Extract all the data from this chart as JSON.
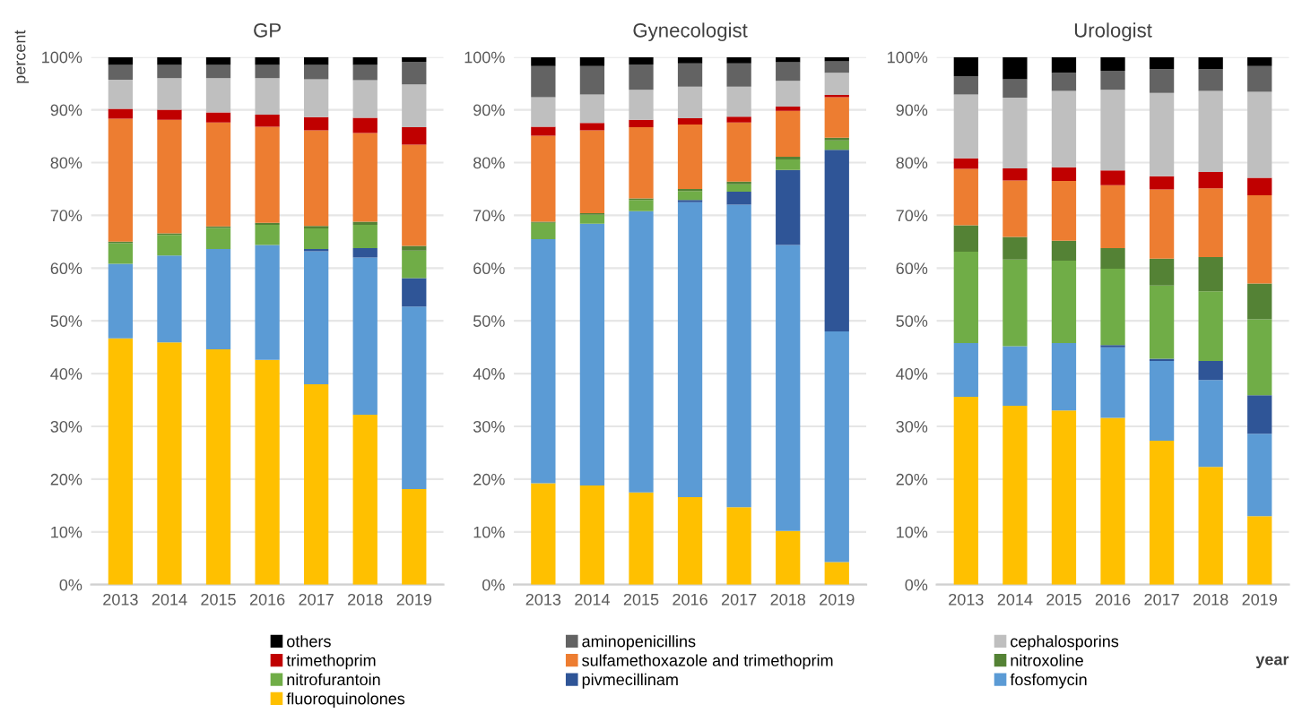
{
  "chart_data": [
    {
      "type": "bar",
      "stacked": true,
      "title": "GP",
      "ylabel": "percent",
      "categories": [
        "2013",
        "2014",
        "2015",
        "2016",
        "2017",
        "2018",
        "2019"
      ],
      "ylim": [
        0,
        100
      ],
      "yticks": [
        {
          "value": 0,
          "label": "0%"
        },
        {
          "value": 10,
          "label": "10%"
        },
        {
          "value": 20,
          "label": "20%"
        },
        {
          "value": 30,
          "label": "30%"
        },
        {
          "value": 40,
          "label": "40%"
        },
        {
          "value": 50,
          "label": "50%"
        },
        {
          "value": 60,
          "label": "60%"
        },
        {
          "value": 70,
          "label": "70%"
        },
        {
          "value": 80,
          "label": "80%"
        },
        {
          "value": 90,
          "label": "90%"
        },
        {
          "value": 100,
          "label": "100%"
        }
      ],
      "grid": "y",
      "legend": "bottom",
      "series": [
        {
          "name": "fluoroquinolones",
          "color": "#ffc000",
          "values": [
            46.7,
            45.9,
            44.6,
            42.6,
            38.0,
            32.2,
            18.1
          ]
        },
        {
          "name": "fosfomycin",
          "color": "#5b9bd5",
          "values": [
            14.1,
            16.5,
            19.0,
            21.8,
            25.2,
            29.8,
            34.6
          ]
        },
        {
          "name": "pivmecillinam",
          "color": "#2f5597",
          "values": [
            0,
            0,
            0,
            0,
            0.4,
            1.8,
            5.4
          ]
        },
        {
          "name": "nitrofurantoin",
          "color": "#70ad47",
          "values": [
            3.9,
            3.9,
            4.0,
            3.8,
            3.9,
            4.4,
            5.2
          ]
        },
        {
          "name": "nitroxoline",
          "color": "#548235",
          "values": [
            0.3,
            0.3,
            0.3,
            0.4,
            0.5,
            0.6,
            0.9
          ]
        },
        {
          "name": "sulfamethoxazole and trimethoprim",
          "color": "#ed7d31",
          "values": [
            23.3,
            21.5,
            19.7,
            18.2,
            18.1,
            16.8,
            19.2
          ]
        },
        {
          "name": "trimethoprim",
          "color": "#c00000",
          "values": [
            1.9,
            1.9,
            1.9,
            2.3,
            2.5,
            2.9,
            3.3
          ]
        },
        {
          "name": "cephalosporins",
          "color": "#bfbfbf",
          "values": [
            5.5,
            6.0,
            6.5,
            6.9,
            7.2,
            7.1,
            8.1
          ]
        },
        {
          "name": "aminopenicillins",
          "color": "#636363",
          "values": [
            2.8,
            2.5,
            2.5,
            2.5,
            2.7,
            2.9,
            4.3
          ]
        },
        {
          "name": "others",
          "color": "#000000",
          "values": [
            1.5,
            1.5,
            1.5,
            1.5,
            1.5,
            1.5,
            0.9
          ]
        }
      ]
    },
    {
      "type": "bar",
      "stacked": true,
      "title": "Gynecologist",
      "categories": [
        "2013",
        "2014",
        "2015",
        "2016",
        "2017",
        "2018",
        "2019"
      ],
      "ylim": [
        0,
        100
      ],
      "yticks": [
        {
          "value": 0,
          "label": "0%"
        },
        {
          "value": 10,
          "label": "10%"
        },
        {
          "value": 20,
          "label": "20%"
        },
        {
          "value": 30,
          "label": "30%"
        },
        {
          "value": 40,
          "label": "40%"
        },
        {
          "value": 50,
          "label": "50%"
        },
        {
          "value": 60,
          "label": "60%"
        },
        {
          "value": 70,
          "label": "70%"
        },
        {
          "value": 80,
          "label": "80%"
        },
        {
          "value": 90,
          "label": "90%"
        },
        {
          "value": 100,
          "label": "100%"
        }
      ],
      "grid": "y",
      "series": [
        {
          "name": "fluoroquinolones",
          "color": "#ffc000",
          "values": [
            19.2,
            18.8,
            17.5,
            16.6,
            14.7,
            10.2,
            4.3
          ]
        },
        {
          "name": "fosfomycin",
          "color": "#5b9bd5",
          "values": [
            46.3,
            49.6,
            53.3,
            55.9,
            57.3,
            54.2,
            43.7
          ]
        },
        {
          "name": "pivmecillinam",
          "color": "#2f5597",
          "values": [
            0,
            0,
            0,
            0.4,
            2.5,
            14.2,
            34.4
          ]
        },
        {
          "name": "nitrofurantoin",
          "color": "#70ad47",
          "values": [
            3.1,
            1.7,
            2.1,
            1.7,
            1.4,
            2.0,
            1.8
          ]
        },
        {
          "name": "nitroxoline",
          "color": "#548235",
          "values": [
            0.2,
            0.3,
            0.3,
            0.4,
            0.5,
            0.5,
            0.5
          ]
        },
        {
          "name": "sulfamethoxazole and trimethoprim",
          "color": "#ed7d31",
          "values": [
            16.3,
            15.7,
            13.5,
            12.2,
            11.2,
            8.7,
            7.7
          ]
        },
        {
          "name": "trimethoprim",
          "color": "#c00000",
          "values": [
            1.7,
            1.4,
            1.4,
            1.2,
            1.1,
            0.8,
            0.4
          ]
        },
        {
          "name": "cephalosporins",
          "color": "#bfbfbf",
          "values": [
            5.6,
            5.4,
            5.7,
            6.0,
            5.7,
            4.9,
            4.2
          ]
        },
        {
          "name": "aminopenicillins",
          "color": "#636363",
          "values": [
            5.9,
            5.4,
            4.8,
            4.4,
            4.4,
            3.5,
            2.2
          ]
        },
        {
          "name": "others",
          "color": "#000000",
          "values": [
            1.7,
            1.7,
            1.4,
            1.2,
            1.2,
            1.0,
            0.8
          ]
        }
      ]
    },
    {
      "type": "bar",
      "stacked": true,
      "title": "Urologist",
      "xlabel": "year",
      "categories": [
        "2013",
        "2014",
        "2015",
        "2016",
        "2017",
        "2018",
        "2019"
      ],
      "ylim": [
        0,
        100
      ],
      "yticks": [
        {
          "value": 0,
          "label": "0%"
        },
        {
          "value": 10,
          "label": "10%"
        },
        {
          "value": 20,
          "label": "20%"
        },
        {
          "value": 30,
          "label": "30%"
        },
        {
          "value": 40,
          "label": "40%"
        },
        {
          "value": 50,
          "label": "50%"
        },
        {
          "value": 60,
          "label": "60%"
        },
        {
          "value": 70,
          "label": "70%"
        },
        {
          "value": 80,
          "label": "80%"
        },
        {
          "value": 90,
          "label": "90%"
        },
        {
          "value": 100,
          "label": "100%"
        }
      ],
      "grid": "y",
      "series": [
        {
          "name": "fluoroquinolones",
          "color": "#ffc000",
          "values": [
            35.6,
            33.9,
            33.0,
            31.6,
            27.3,
            22.3,
            13.0
          ]
        },
        {
          "name": "fosfomycin",
          "color": "#5b9bd5",
          "values": [
            10.2,
            11.3,
            12.8,
            13.4,
            15.1,
            16.5,
            15.6
          ]
        },
        {
          "name": "pivmecillinam",
          "color": "#2f5597",
          "values": [
            0,
            0,
            0,
            0.4,
            0.4,
            3.6,
            7.3
          ]
        },
        {
          "name": "nitrofurantoin",
          "color": "#70ad47",
          "values": [
            17.3,
            16.4,
            15.6,
            14.5,
            13.9,
            13.2,
            14.4
          ]
        },
        {
          "name": "nitroxoline",
          "color": "#548235",
          "values": [
            5.0,
            4.3,
            3.8,
            3.9,
            5.1,
            6.5,
            6.8
          ]
        },
        {
          "name": "sulfamethoxazole and trimethoprim",
          "color": "#ed7d31",
          "values": [
            10.7,
            10.7,
            11.3,
            11.9,
            13.1,
            13.0,
            16.7
          ]
        },
        {
          "name": "trimethoprim",
          "color": "#c00000",
          "values": [
            2.0,
            2.3,
            2.6,
            2.8,
            2.5,
            3.1,
            3.3
          ]
        },
        {
          "name": "cephalosporins",
          "color": "#bfbfbf",
          "values": [
            12.1,
            13.4,
            14.5,
            15.3,
            15.8,
            15.4,
            16.3
          ]
        },
        {
          "name": "aminopenicillins",
          "color": "#636363",
          "values": [
            3.5,
            3.5,
            3.4,
            3.6,
            4.5,
            4.1,
            4.9
          ]
        },
        {
          "name": "others",
          "color": "#000000",
          "values": [
            3.6,
            4.2,
            3.0,
            2.6,
            2.3,
            2.3,
            1.7
          ]
        }
      ]
    }
  ]
}
